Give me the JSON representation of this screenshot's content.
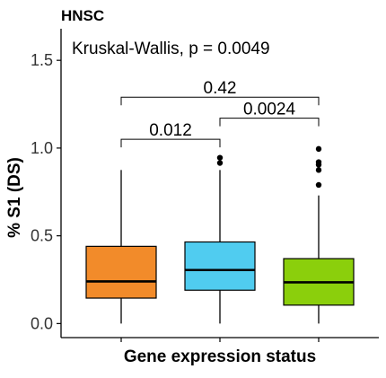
{
  "chart_data": {
    "type": "box",
    "title": "HNSC",
    "xlabel": "Gene expression status",
    "ylabel": "% S1 (DS)",
    "ylim": [
      -0.08,
      1.68
    ],
    "yticks": [
      0.0,
      0.5,
      1.0,
      1.5
    ],
    "ytick_labels": [
      "0.0",
      "0.5",
      "1.0",
      "1.5"
    ],
    "grid": false,
    "legend": "none",
    "annotation": "Kruskal-Wallis, p = 0.0049",
    "boxes": [
      {
        "color": "#F28B2A",
        "whisker_low": 0.0,
        "q1": 0.145,
        "median": 0.24,
        "q3": 0.44,
        "whisker_high": 0.875,
        "outliers": []
      },
      {
        "color": "#50CCF0",
        "whisker_low": 0.0,
        "q1": 0.19,
        "median": 0.305,
        "q3": 0.465,
        "whisker_high": 0.875,
        "outliers": [
          0.915,
          0.945
        ]
      },
      {
        "color": "#8BCF0C",
        "whisker_low": 0.0,
        "q1": 0.105,
        "median": 0.235,
        "q3": 0.37,
        "whisker_high": 0.73,
        "outliers": [
          0.79,
          0.875,
          0.905,
          0.92,
          0.995
        ]
      }
    ],
    "comparisons": [
      {
        "from": 0,
        "to": 1,
        "label": "0.012",
        "y": 1.05
      },
      {
        "from": 1,
        "to": 2,
        "label": "0.0024",
        "y": 1.17
      },
      {
        "from": 0,
        "to": 2,
        "label": "0.42",
        "y": 1.29
      }
    ]
  }
}
